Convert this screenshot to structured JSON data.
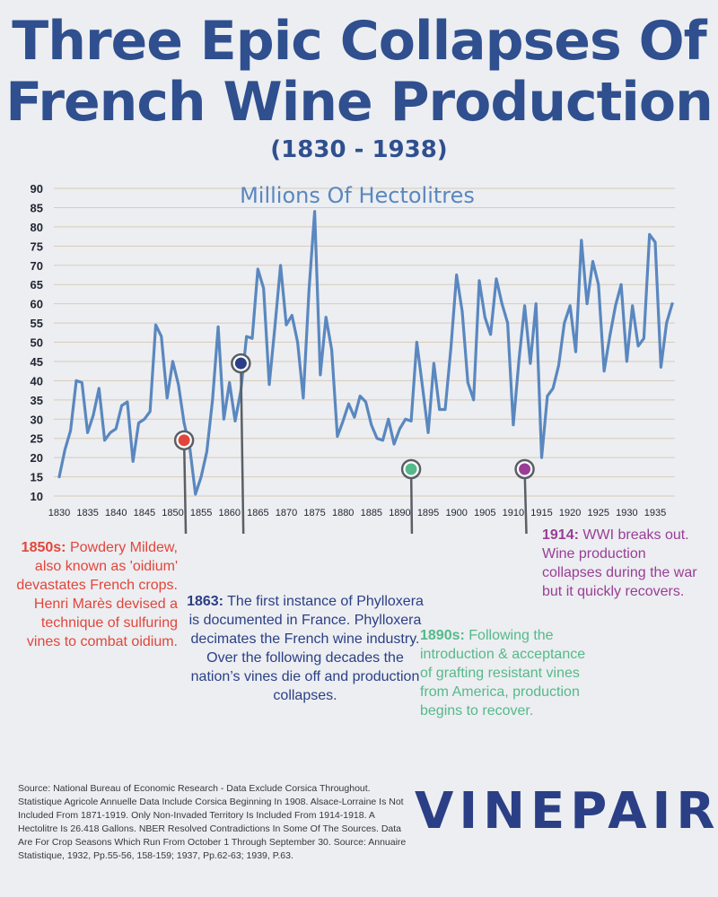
{
  "title": "Three Epic Collapses Of French Wine Production",
  "subtitle": "(1830 - 1938)",
  "chart_data": {
    "type": "line",
    "title": "Millions Of Hectolitres",
    "xlabel": "",
    "ylabel": "Millions Of Hectolitres",
    "xlim": [
      1830,
      1938
    ],
    "ylim": [
      10,
      90
    ],
    "grid": true,
    "x_ticks": [
      "1830",
      "1835",
      "1840",
      "1845",
      "1850",
      "1855",
      "1860",
      "1865",
      "1870",
      "1875",
      "1880",
      "1885",
      "1890",
      "1895",
      "1900",
      "1905",
      "1910",
      "1915",
      "1920",
      "1925",
      "1930",
      "1935"
    ],
    "y_ticks": [
      "10",
      "15",
      "20",
      "25",
      "30",
      "35",
      "40",
      "45",
      "50",
      "55",
      "60",
      "65",
      "70",
      "75",
      "80",
      "85",
      "90"
    ],
    "series": [
      {
        "name": "French wine production",
        "color": "#5a87bf",
        "x": [
          1830,
          1831,
          1832,
          1833,
          1834,
          1835,
          1836,
          1837,
          1838,
          1839,
          1840,
          1841,
          1842,
          1843,
          1844,
          1845,
          1846,
          1847,
          1848,
          1849,
          1850,
          1851,
          1852,
          1853,
          1854,
          1855,
          1856,
          1857,
          1858,
          1859,
          1860,
          1861,
          1862,
          1863,
          1864,
          1865,
          1866,
          1867,
          1868,
          1869,
          1870,
          1871,
          1872,
          1873,
          1874,
          1875,
          1876,
          1877,
          1878,
          1879,
          1880,
          1881,
          1882,
          1883,
          1884,
          1885,
          1886,
          1887,
          1888,
          1889,
          1890,
          1891,
          1892,
          1893,
          1894,
          1895,
          1896,
          1897,
          1898,
          1899,
          1900,
          1901,
          1902,
          1903,
          1904,
          1905,
          1906,
          1907,
          1908,
          1909,
          1910,
          1911,
          1912,
          1913,
          1914,
          1915,
          1916,
          1917,
          1918,
          1919,
          1920,
          1921,
          1922,
          1923,
          1924,
          1925,
          1926,
          1927,
          1928,
          1929,
          1930,
          1931,
          1932,
          1933,
          1934,
          1935,
          1936,
          1937,
          1938
        ],
        "values": [
          15,
          22,
          27,
          40,
          39.5,
          26.5,
          31,
          38,
          24.5,
          26.5,
          27.5,
          33.5,
          34.5,
          19,
          29,
          30,
          32,
          54.5,
          51.5,
          35.5,
          45,
          39,
          29,
          22.5,
          10.5,
          15,
          21.5,
          35,
          54,
          30,
          39.5,
          29.5,
          37.5,
          51.5,
          51,
          69,
          64,
          39,
          54,
          70,
          54.5,
          57,
          50,
          35.5,
          63.5,
          84,
          41.5,
          56.5,
          48,
          25.5,
          29.5,
          34,
          30.5,
          36,
          34.5,
          28.5,
          25,
          24.5,
          30,
          23.5,
          27.5,
          30,
          29.5,
          50,
          38.5,
          26.5,
          44.5,
          32.5,
          32.5,
          48.5,
          67.5,
          58,
          39.5,
          35,
          66,
          56.5,
          52,
          66.5,
          60,
          55,
          28.5,
          45.5,
          59.5,
          44.5,
          60,
          20,
          36,
          38,
          44,
          55,
          59.5,
          47.5,
          76.5,
          60,
          71,
          65,
          42.5,
          51.5,
          59.5,
          65,
          45,
          59.5,
          49,
          51,
          78,
          76,
          43.5,
          55,
          60
        ]
      }
    ],
    "highlights": [
      {
        "x": 1852,
        "y": 24.5,
        "color": "#e2453b"
      },
      {
        "x": 1862,
        "y": 44.5,
        "color": "#2b3f86"
      },
      {
        "x": 1892,
        "y": 17,
        "color": "#55b98a"
      },
      {
        "x": 1912,
        "y": 17,
        "color": "#9a3d97"
      }
    ]
  },
  "annotations": [
    {
      "label": "1850s:",
      "text": "Powdery Mildew, also known as 'oidium' devastates French crops. Henri Marès devised a technique of sulfuring vines to combat oidium."
    },
    {
      "label": "1863:",
      "text": "The first instance of Phylloxera is documented in France. Phylloxera decimates the French wine industry. Over the following decades the nation’s vines die off and production collapses."
    },
    {
      "label": "1890s:",
      "text": "Following the introduction & acceptance of grafting resistant vines from America, production begins to recover."
    },
    {
      "label": "1914:",
      "text": "WWI breaks out. Wine production collapses during the war but it quickly recovers."
    }
  ],
  "source": "Source: National Bureau of Economic Research - Data Exclude Corsica Throughout. Statistique Agricole Annuelle Data Include Corsica Beginning In 1908. Alsace-Lorraine Is Not Included From 1871-1919. Only Non-Invaded Territory Is Included From 1914-1918. A Hectolitre Is 26.418 Gallons. NBER Resolved Contradictions In Some Of The Sources. Data Are For Crop Seasons Which Run From October 1 Through September 30. Source: Annuaire Statistique, 1932, Pp.55-56, 158-159; 1937, Pp.62-63; 1939, P.63.",
  "logo": "VINEPAIR"
}
